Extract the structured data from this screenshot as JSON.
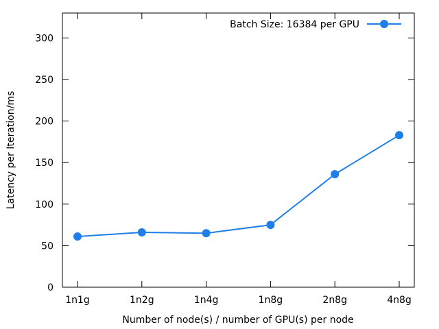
{
  "chart_data": {
    "type": "line",
    "title": "",
    "xlabel": "Number of node(s) / number of GPU(s) per node",
    "ylabel": "Latency per Iteration/ms",
    "categories": [
      "1n1g",
      "1n2g",
      "1n4g",
      "1n8g",
      "2n8g",
      "4n8g"
    ],
    "yticks": [
      "0",
      "50",
      "100",
      "150",
      "200",
      "250",
      "300"
    ],
    "ylim": [
      0,
      330
    ],
    "grid": false,
    "legend_position": "top-right",
    "series": [
      {
        "name": "Batch Size: 16384 per GPU",
        "color": "#1f7fe8",
        "marker": "circle",
        "values": [
          61,
          66,
          65,
          75,
          136,
          183
        ]
      }
    ]
  }
}
